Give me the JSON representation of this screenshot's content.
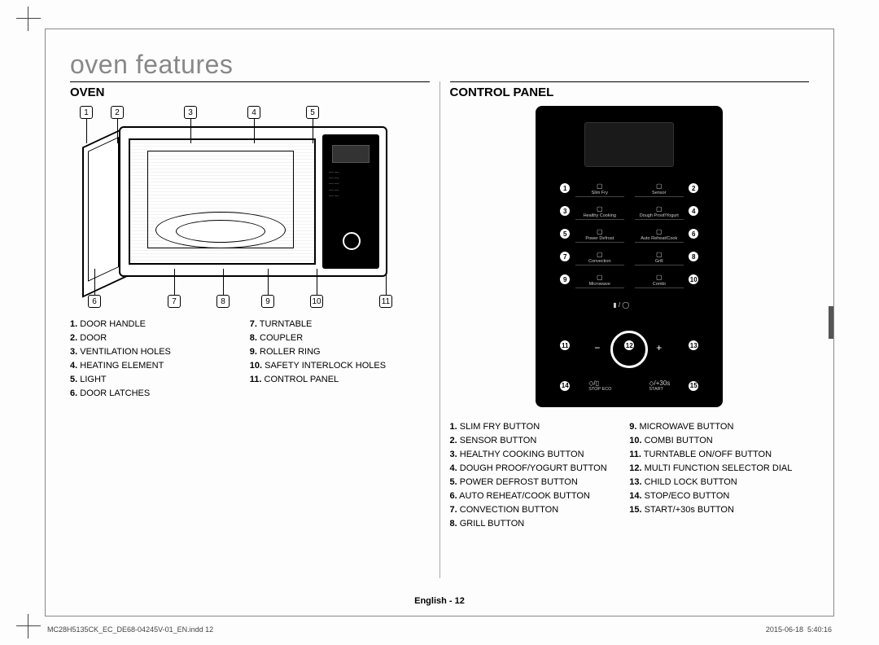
{
  "title": "oven features",
  "oven": {
    "heading": "OVEN",
    "topCallouts": [
      "1",
      "2",
      "3",
      "4",
      "5"
    ],
    "bottomCallouts": [
      "6",
      "7",
      "8",
      "9",
      "10",
      "11"
    ],
    "legendLeft": [
      {
        "n": "1.",
        "t": "DOOR HANDLE"
      },
      {
        "n": "2.",
        "t": "DOOR"
      },
      {
        "n": "3.",
        "t": "VENTILATION HOLES"
      },
      {
        "n": "4.",
        "t": "HEATING ELEMENT"
      },
      {
        "n": "5.",
        "t": "LIGHT"
      },
      {
        "n": "6.",
        "t": "DOOR LATCHES"
      }
    ],
    "legendRight": [
      {
        "n": "7.",
        "t": "TURNTABLE"
      },
      {
        "n": "8.",
        "t": "COUPLER"
      },
      {
        "n": "9.",
        "t": "ROLLER RING"
      },
      {
        "n": "10.",
        "t": "SAFETY INTERLOCK HOLES"
      },
      {
        "n": "11.",
        "t": "CONTROL PANEL"
      }
    ]
  },
  "panel": {
    "heading": "CONTROL PANEL",
    "rows": [
      {
        "l": "1",
        "labels": [
          "Slim Fry",
          "Sensor"
        ],
        "r": "2"
      },
      {
        "l": "3",
        "labels": [
          "Healthy Cooking",
          "Dough Proof/Yogurt"
        ],
        "r": "4"
      },
      {
        "l": "5",
        "labels": [
          "Power Defrost",
          "Auto Reheat/Cook"
        ],
        "r": "6"
      },
      {
        "l": "7",
        "labels": [
          "Convection",
          "Grill"
        ],
        "r": "8"
      },
      {
        "l": "9",
        "labels": [
          "Microwave",
          "Combi"
        ],
        "r": "10"
      }
    ],
    "dialLeft": "11",
    "dialCenter": "12",
    "dialRight": "13",
    "bottomL": "14",
    "bottomR": "15",
    "bottomLabels": [
      "STOP   ECO",
      "START"
    ],
    "legendLeft": [
      {
        "n": "1.",
        "t": "SLIM FRY BUTTON"
      },
      {
        "n": "2.",
        "t": "SENSOR BUTTON"
      },
      {
        "n": "3.",
        "t": "HEALTHY COOKING BUTTON"
      },
      {
        "n": "4.",
        "t": "DOUGH PROOF/YOGURT BUTTON"
      },
      {
        "n": "5.",
        "t": "POWER DEFROST BUTTON"
      },
      {
        "n": "6.",
        "t": "AUTO REHEAT/COOK BUTTON"
      },
      {
        "n": "7.",
        "t": "CONVECTION BUTTON"
      },
      {
        "n": "8.",
        "t": "GRILL BUTTON"
      }
    ],
    "legendRight": [
      {
        "n": "9.",
        "t": "MICROWAVE BUTTON"
      },
      {
        "n": "10.",
        "t": "COMBI BUTTON"
      },
      {
        "n": "11.",
        "t": "TURNTABLE ON/OFF BUTTON"
      },
      {
        "n": "12.",
        "t": "MULTI FUNCTION SELECTOR DIAL"
      },
      {
        "n": "13.",
        "t": "CHILD LOCK BUTTON"
      },
      {
        "n": "14.",
        "t": "STOP/ECO BUTTON"
      },
      {
        "n": "15.",
        "t": "START/+30s BUTTON"
      }
    ]
  },
  "footer": "English - 12",
  "meta": {
    "file": "MC28H5135CK_EC_DE68-04245V-01_EN.indd   12",
    "stamp": "2015-06-18   \u0014 5:40:16"
  },
  "layout": {
    "topCalloutX": [
      12,
      50,
      140,
      218,
      290
    ],
    "bottomCalloutX": [
      22,
      120,
      180,
      235,
      295,
      380
    ],
    "cpRowTop": [
      90,
      118,
      146,
      174,
      202
    ]
  }
}
